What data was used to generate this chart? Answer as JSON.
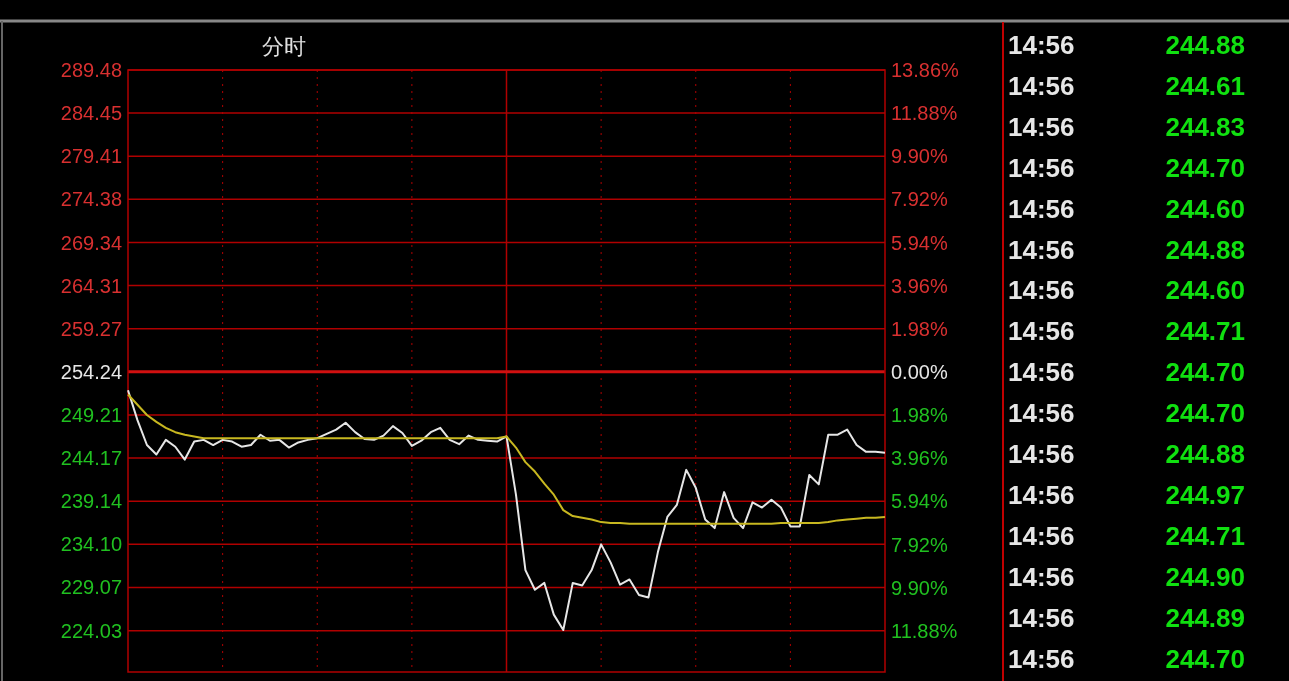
{
  "chart_data": [
    {
      "type": "line",
      "title": "分时",
      "categories": [
        null,
        null,
        null,
        null,
        null,
        null,
        null,
        null,
        null,
        null,
        null,
        null,
        null,
        null,
        null,
        null,
        null,
        null,
        null,
        null,
        null,
        null,
        null,
        null,
        null,
        null,
        null,
        null,
        null,
        null,
        null,
        null,
        null,
        null,
        null,
        null,
        null,
        null,
        null,
        null,
        null,
        null,
        null,
        null,
        null,
        null,
        null,
        null,
        null,
        null,
        null,
        null,
        null,
        null,
        null,
        null,
        null,
        null,
        null,
        null,
        null,
        null,
        null,
        null,
        null,
        null,
        null,
        null,
        null,
        null,
        null,
        null,
        null,
        null,
        null,
        null,
        null,
        null,
        null,
        null,
        null
      ],
      "series": [
        {
          "color": "#e6e6e6",
          "values": [
            252.1,
            248.6,
            245.7,
            244.6,
            246.3,
            245.5,
            244.0,
            246.1,
            246.3,
            245.7,
            246.3,
            246.1,
            245.5,
            245.7,
            246.9,
            246.2,
            246.3,
            245.4,
            246.0,
            246.3,
            246.5,
            247.0,
            247.5,
            248.3,
            247.2,
            246.4,
            246.3,
            246.8,
            247.9,
            247.1,
            245.6,
            246.2,
            247.2,
            247.7,
            246.3,
            245.8,
            246.8,
            246.3,
            246.2,
            246.1,
            246.7,
            239.9,
            231.1,
            228.8,
            229.6,
            225.9,
            224.1,
            229.6,
            229.3,
            231.1,
            234.1,
            232.0,
            229.4,
            230.0,
            228.2,
            227.9,
            233.2,
            237.3,
            238.7,
            242.8,
            240.7,
            237.0,
            236.0,
            240.2,
            237.2,
            236.0,
            239.0,
            238.4,
            239.3,
            238.4,
            236.2,
            236.2,
            242.2,
            241.1,
            246.9,
            246.9,
            247.5,
            245.7,
            244.9,
            244.9,
            244.8
          ]
        },
        {
          "color": "#c8b820",
          "values": [
            251.6,
            250.4,
            249.2,
            248.4,
            247.7,
            247.2,
            246.9,
            246.7,
            246.5,
            246.5,
            246.5,
            246.5,
            246.5,
            246.5,
            246.5,
            246.5,
            246.5,
            246.5,
            246.5,
            246.5,
            246.5,
            246.5,
            246.5,
            246.5,
            246.5,
            246.5,
            246.5,
            246.5,
            246.5,
            246.5,
            246.5,
            246.5,
            246.5,
            246.5,
            246.5,
            246.5,
            246.5,
            246.5,
            246.5,
            246.5,
            246.7,
            245.4,
            243.7,
            242.6,
            241.2,
            239.9,
            238.1,
            237.4,
            237.2,
            237.0,
            236.7,
            236.6,
            236.6,
            236.5,
            236.5,
            236.5,
            236.5,
            236.5,
            236.5,
            236.5,
            236.5,
            236.5,
            236.5,
            236.5,
            236.5,
            236.5,
            236.5,
            236.5,
            236.5,
            236.6,
            236.6,
            236.6,
            236.6,
            236.6,
            236.7,
            236.9,
            237.0,
            237.1,
            237.2,
            237.2,
            237.3
          ]
        }
      ],
      "ylim": [
        219.2,
        289.48
      ],
      "yticks": [
        {
          "value": 289.48,
          "label": "289.48"
        },
        {
          "value": 284.45,
          "label": "284.45"
        },
        {
          "value": 279.41,
          "label": "279.41"
        },
        {
          "value": 274.38,
          "label": "274.38"
        },
        {
          "value": 269.34,
          "label": "269.34"
        },
        {
          "value": 264.31,
          "label": "264.31"
        },
        {
          "value": 259.27,
          "label": "259.27"
        },
        {
          "value": 254.24,
          "label": "254.24"
        },
        {
          "value": 249.21,
          "label": "249.21"
        },
        {
          "value": 244.17,
          "label": "244.17"
        },
        {
          "value": 239.14,
          "label": "239.14"
        },
        {
          "value": 234.1,
          "label": "234.10"
        },
        {
          "value": 229.07,
          "label": "229.07"
        },
        {
          "value": 224.03,
          "label": "224.03"
        }
      ],
      "y2lim": [
        -13.77,
        13.86
      ],
      "y2ticks": [
        {
          "value": 13.86,
          "label": "13.86%"
        },
        {
          "value": 11.88,
          "label": "11.88%"
        },
        {
          "value": 9.9,
          "label": "9.90%"
        },
        {
          "value": 7.92,
          "label": "7.92%"
        },
        {
          "value": 5.94,
          "label": "5.94%"
        },
        {
          "value": 3.96,
          "label": "3.96%"
        },
        {
          "value": 1.98,
          "label": "1.98%"
        },
        {
          "value": 0,
          "label": "0.00%"
        },
        {
          "value": -1.98,
          "label": "1.98%"
        },
        {
          "value": -3.96,
          "label": "3.96%"
        },
        {
          "value": -5.94,
          "label": "5.94%"
        },
        {
          "value": -7.92,
          "label": "7.92%"
        },
        {
          "value": -9.9,
          "label": "9.90%"
        },
        {
          "value": -11.88,
          "label": "11.88%"
        }
      ],
      "ref_lines": [
        {
          "axis": "y",
          "value": 254.24,
          "color": "#d01010"
        }
      ],
      "grid": true,
      "tick_labels": "y",
      "line_style": "solid",
      "marker": "none"
    },
    {
      "type": "other",
      "annotations": [
        "14:56",
        "244.88",
        "14:56",
        "244.61",
        "14:56",
        "244.83",
        "14:56",
        "244.70",
        "14:56",
        "244.60",
        "14:56",
        "244.88",
        "14:56",
        "244.60",
        "14:56",
        "244.71",
        "14:56",
        "244.70",
        "14:56",
        "244.70",
        "14:56",
        "244.88",
        "14:56",
        "244.97",
        "14:56",
        "244.71",
        "14:56",
        "244.90",
        "14:56",
        "244.89",
        "14:56",
        "244.70"
      ]
    }
  ]
}
